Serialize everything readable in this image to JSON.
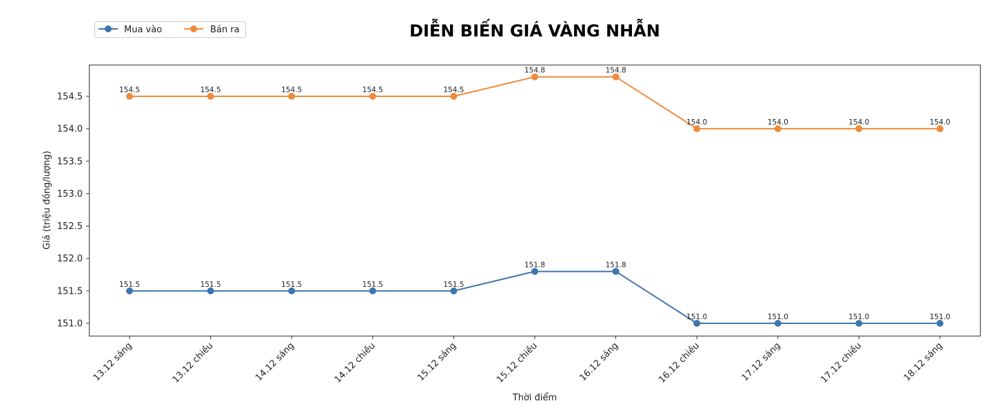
{
  "chart_data": {
    "type": "line",
    "title": "DIỄN BIẾN GIÁ VÀNG NHẪN",
    "xlabel": "Thời điểm",
    "ylabel": "Giá (triệu đồng/lượng)",
    "categories": [
      "13.12 sáng",
      "13.12 chiều",
      "14.12 sáng",
      "14.12 chiều",
      "15.12 sáng",
      "15.12 chiều",
      "16.12 sáng",
      "16.12 chiều",
      "17.12 sáng",
      "17.12 chiều",
      "18.12 sáng"
    ],
    "series": [
      {
        "name": "Mua vào",
        "color": "#3e75ad",
        "values": [
          151.5,
          151.5,
          151.5,
          151.5,
          151.5,
          151.8,
          151.8,
          151.0,
          151.0,
          151.0,
          151.0
        ]
      },
      {
        "name": "Bán ra",
        "color": "#ef8b3a",
        "values": [
          154.5,
          154.5,
          154.5,
          154.5,
          154.5,
          154.8,
          154.8,
          154.0,
          154.0,
          154.0,
          154.0
        ]
      }
    ],
    "yticks": [
      151.0,
      151.5,
      152.0,
      152.5,
      153.0,
      153.5,
      154.0,
      154.5
    ],
    "ylim": [
      150.82,
      155.0
    ],
    "grid": false,
    "legend_position": "upper left (outside, above plot)",
    "data_labels": true
  }
}
